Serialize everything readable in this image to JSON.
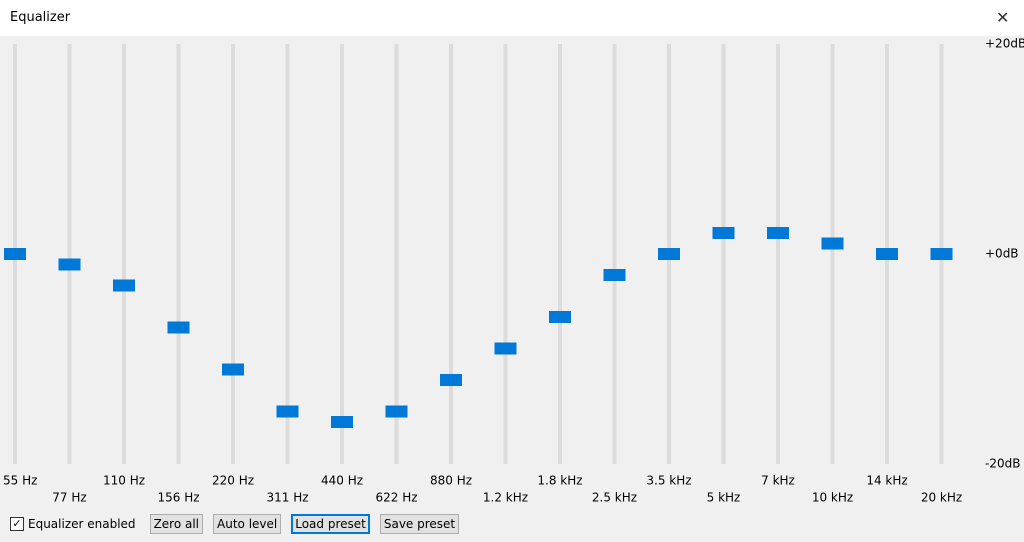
{
  "window": {
    "title": "Equalizer"
  },
  "scale": {
    "ylim": [
      -20,
      20
    ],
    "ticks": [
      {
        "value": 20,
        "label": "+20dB"
      },
      {
        "value": 0,
        "label": "+0dB"
      },
      {
        "value": -20,
        "label": "-20dB"
      }
    ]
  },
  "bands": [
    {
      "label": "55 Hz",
      "gain": 0
    },
    {
      "label": "77 Hz",
      "gain": -1
    },
    {
      "label": "110 Hz",
      "gain": -3
    },
    {
      "label": "156 Hz",
      "gain": -7
    },
    {
      "label": "220 Hz",
      "gain": -11
    },
    {
      "label": "311 Hz",
      "gain": -15
    },
    {
      "label": "440 Hz",
      "gain": -16
    },
    {
      "label": "622 Hz",
      "gain": -15
    },
    {
      "label": "880 Hz",
      "gain": -12
    },
    {
      "label": "1.2 kHz",
      "gain": -9
    },
    {
      "label": "1.8 kHz",
      "gain": -6
    },
    {
      "label": "2.5 kHz",
      "gain": -2
    },
    {
      "label": "3.5 kHz",
      "gain": 0
    },
    {
      "label": "5 kHz",
      "gain": 2
    },
    {
      "label": "7 kHz",
      "gain": 2
    },
    {
      "label": "10 kHz",
      "gain": 1
    },
    {
      "label": "14 kHz",
      "gain": 0
    },
    {
      "label": "20 kHz",
      "gain": 0
    }
  ],
  "controls": {
    "enabled": {
      "label": "Equalizer enabled",
      "checked": true
    },
    "buttons": [
      "Zero all",
      "Auto level",
      "Load preset",
      "Save preset"
    ]
  }
}
